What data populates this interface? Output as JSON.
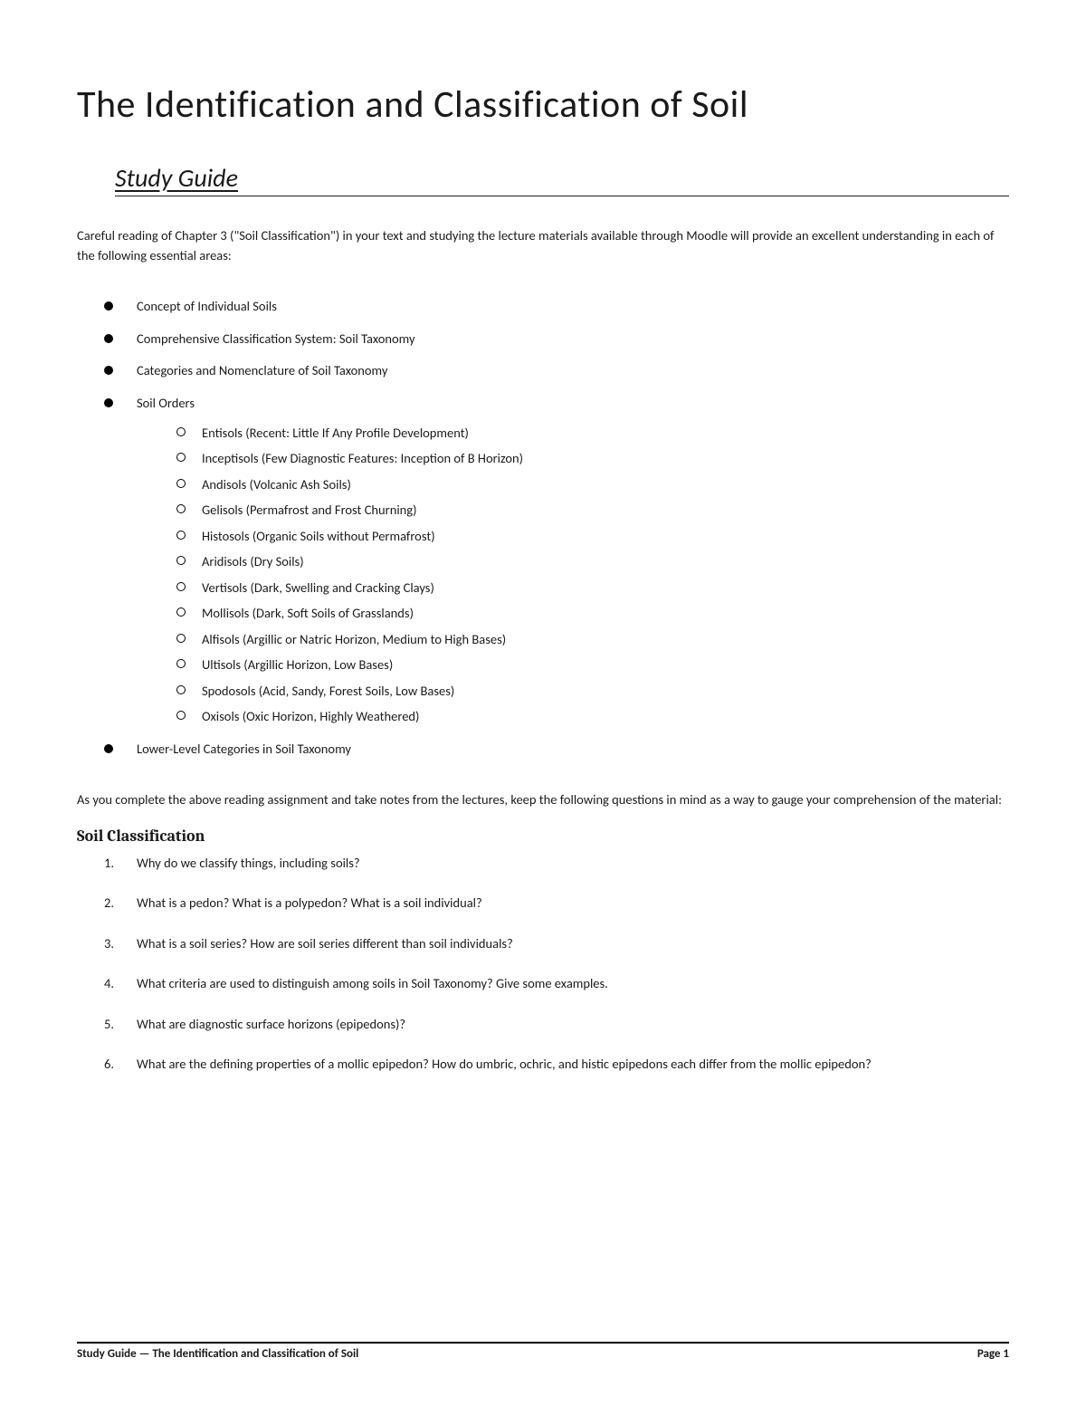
{
  "title": "The Identification and Classification of Soil",
  "subtitle": "Study Guide",
  "intro": "Careful reading of Chapter 3 (\"Soil Classification\") in your text and studying the lecture materials available through Moodle will provide an excellent understanding in each of the following essential areas:",
  "bullets": [
    "Concept of Individual Soils",
    "Comprehensive Classification System: Soil Taxonomy",
    "Categories and Nomenclature of Soil Taxonomy",
    "Soil Orders",
    "Lower-Level Categories in Soil Taxonomy"
  ],
  "soil_orders": [
    "Entisols (Recent: Little If Any Profile Development)",
    "Inceptisols (Few Diagnostic Features: Inception of B Horizon)",
    "Andisols (Volcanic Ash Soils)",
    "Gelisols (Permafrost and Frost Churning)",
    "Histosols (Organic Soils without Permafrost)",
    "Aridisols (Dry Soils)",
    "Vertisols (Dark, Swelling and Cracking Clays)",
    "Mollisols (Dark, Soft Soils of Grasslands)",
    "Alfisols (Argillic or Natric Horizon, Medium to High Bases)",
    "Ultisols (Argillic Horizon, Low Bases)",
    "Spodosols (Acid, Sandy, Forest Soils, Low Bases)",
    "Oxisols (Oxic Horizon, Highly Weathered)"
  ],
  "mid_para": "As you complete the above reading assignment and take notes from the lectures, keep the following questions in mind as a way to gauge your comprehension of the material:",
  "section_head": "Soil Classification",
  "questions": [
    "Why do we classify things, including soils?",
    "What is a pedon? What is a polypedon? What is a soil individual?",
    "What is a soil series? How are soil series different than soil individuals?",
    "What criteria are used to distinguish among soils in Soil Taxonomy? Give some examples.",
    "What are diagnostic surface horizons (epipedons)?",
    "What are the defining properties of a mollic epipedon? How do umbric, ochric, and histic epipedons each differ from the mollic epipedon?"
  ],
  "footer_left": "Study Guide — The Identification and Classification of Soil",
  "footer_right": "Page 1"
}
